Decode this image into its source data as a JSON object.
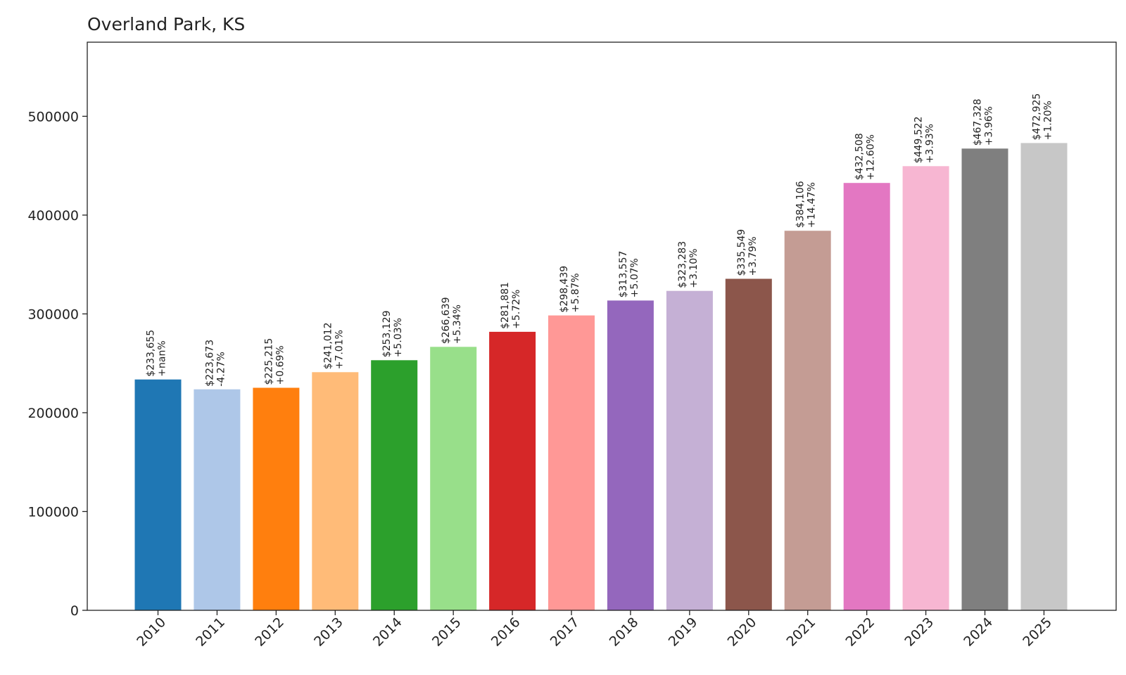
{
  "chart_data": {
    "type": "bar",
    "title": "Overland Park, KS",
    "xlabel": "",
    "ylabel": "",
    "ylim": [
      0,
      575000
    ],
    "yticks": [
      0,
      100000,
      200000,
      300000,
      400000,
      500000
    ],
    "ytick_labels": [
      "0",
      "100000",
      "200000",
      "300000",
      "400000",
      "500000"
    ],
    "grid": false,
    "legend": "none",
    "categories": [
      "2010",
      "2011",
      "2012",
      "2013",
      "2014",
      "2015",
      "2016",
      "2017",
      "2018",
      "2019",
      "2020",
      "2021",
      "2022",
      "2023",
      "2024",
      "2025"
    ],
    "values": [
      233655,
      223673,
      225215,
      241012,
      253129,
      266639,
      281881,
      298439,
      313557,
      323283,
      335549,
      384106,
      432508,
      449522,
      467328,
      472925
    ],
    "value_labels": [
      "$233,655",
      "$223,673",
      "$225,215",
      "$241,012",
      "$253,129",
      "$266,639",
      "$281,881",
      "$298,439",
      "$313,557",
      "$323,283",
      "$335,549",
      "$384,106",
      "$432,508",
      "$449,522",
      "$467,328",
      "$472,925"
    ],
    "change_labels": [
      "+nan%",
      "-4.27%",
      "+0.69%",
      "+7.01%",
      "+5.03%",
      "+5.34%",
      "+5.72%",
      "+5.87%",
      "+5.07%",
      "+3.10%",
      "+3.79%",
      "+14.47%",
      "+12.60%",
      "+3.93%",
      "+3.96%",
      "+1.20%"
    ],
    "colors": [
      "#1f77b4",
      "#aec7e8",
      "#ff7f0e",
      "#ffbb78",
      "#2ca02c",
      "#98df8a",
      "#d62728",
      "#ff9896",
      "#9467bd",
      "#c5b0d5",
      "#8c564b",
      "#c49c94",
      "#e377c2",
      "#f7b6d2",
      "#7f7f7f",
      "#c7c7c7"
    ]
  }
}
